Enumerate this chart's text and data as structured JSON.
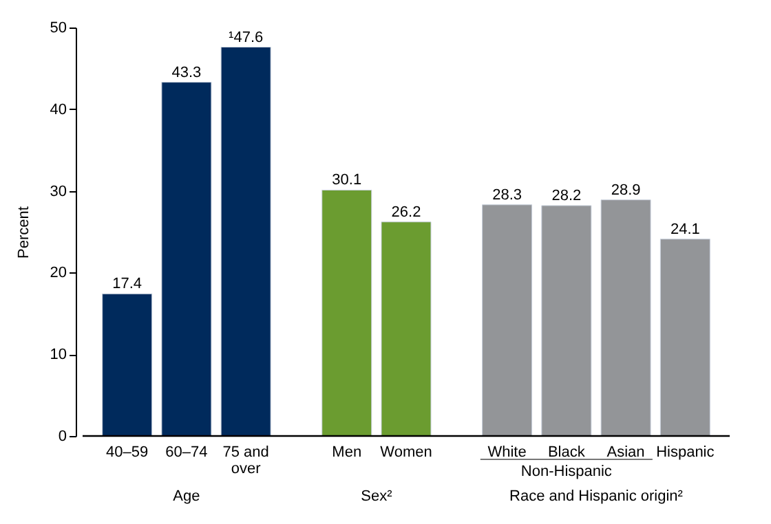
{
  "chart_data": {
    "type": "bar",
    "categories": [
      "40–59",
      "60–74",
      "75 and over",
      "Men",
      "Women",
      "White",
      "Black",
      "Asian",
      "Hispanic"
    ],
    "values": [
      17.4,
      43.3,
      47.6,
      30.1,
      26.2,
      28.3,
      28.2,
      28.9,
      24.1
    ],
    "value_labels": [
      "17.4",
      "43.3",
      "¹47.6",
      "30.1",
      "26.2",
      "28.3",
      "28.2",
      "28.9",
      "24.1"
    ],
    "colors": [
      "#002a5c",
      "#002a5c",
      "#002a5c",
      "#6b9c30",
      "#6b9c30",
      "#939598",
      "#939598",
      "#939598",
      "#939598"
    ],
    "ylabel": "Percent",
    "ylim": [
      0,
      50
    ],
    "yticks": [
      0,
      10,
      20,
      30,
      40,
      50
    ],
    "grid": false,
    "annotations": [
      "Age",
      "Sex²",
      "Race and Hispanic origin²",
      "Non-Hispanic"
    ]
  }
}
